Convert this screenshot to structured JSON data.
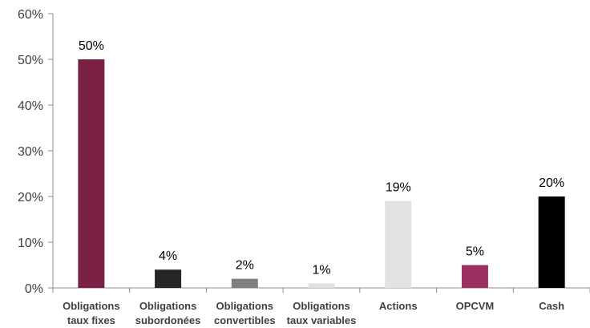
{
  "chart_data": {
    "type": "bar",
    "title": "",
    "xlabel": "",
    "ylabel": "",
    "ylim": [
      0,
      60
    ],
    "yticks": [
      "0%",
      "10%",
      "20%",
      "30%",
      "40%",
      "50%",
      "60%"
    ],
    "grid": false,
    "legend": "none",
    "categories": [
      [
        "Obligations",
        "taux fixes"
      ],
      [
        "Obligations",
        "subordonées"
      ],
      [
        "Obligations",
        "convertibles"
      ],
      [
        "Obligations",
        "taux variables"
      ],
      [
        "Actions"
      ],
      [
        "OPCVM"
      ],
      [
        "Cash"
      ]
    ],
    "values": [
      50,
      4,
      2,
      1,
      19,
      5,
      20
    ],
    "data_labels": [
      "50%",
      "4%",
      "2%",
      "1%",
      "19%",
      "5%",
      "20%"
    ],
    "colors": [
      "#7B2045",
      "#262626",
      "#7F7F7F",
      "#E0E0E0",
      "#E3E3E3",
      "#9B2E63",
      "#000000"
    ]
  }
}
